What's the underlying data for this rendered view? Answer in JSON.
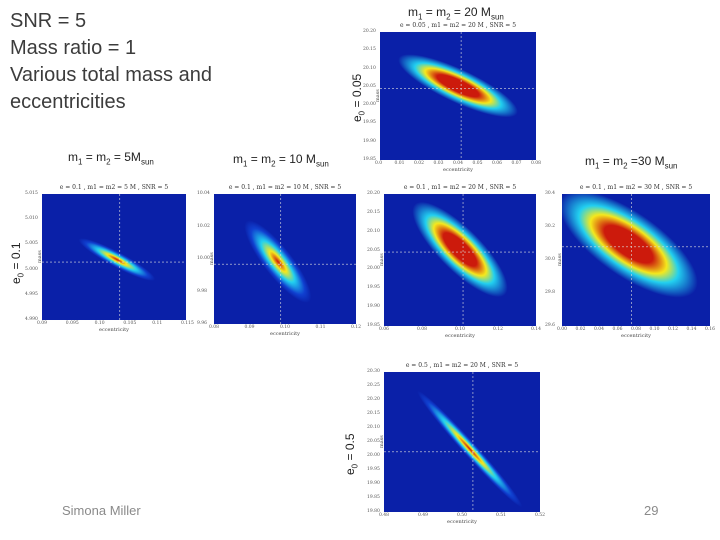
{
  "slide": {
    "title_lines": [
      "SNR = 5",
      "Mass ratio = 1",
      "Various total mass and",
      "eccentricities"
    ],
    "author": "Simona Miller",
    "page_number": "29"
  },
  "labels": {
    "mass_5": {
      "main": "m",
      "s1": "1",
      "mid": " = m",
      "s2": "2",
      "tail": " = 5M",
      "s3": "sun"
    },
    "mass_10": {
      "main": "m",
      "s1": "1",
      "mid": " = m",
      "s2": "2",
      "tail": " = 10 M",
      "s3": "sun"
    },
    "mass_20": {
      "main": "m",
      "s1": "1",
      "mid": " = m",
      "s2": "2",
      "tail": " = 20 M",
      "s3": "sun"
    },
    "mass_30": {
      "main": "m",
      "s1": "1",
      "mid": " = m",
      "s2": "2",
      "tail": " =30 M",
      "s3": "sun"
    },
    "ecc_005": {
      "main": "e",
      "s1": "0",
      "tail": " = 0.05"
    },
    "ecc_01": {
      "main": "e",
      "s1": "0",
      "tail": " = 0.1"
    },
    "ecc_05": {
      "main": "e",
      "s1": "0",
      "tail": " = 0.5"
    }
  },
  "plots": [
    {
      "id": "p20_005",
      "title": "e = 0.05 , m1 = m2 = 20 M , SNR = 5",
      "xlabel": "eccentricity",
      "ylabel": "mass",
      "xticks": [
        "0.0",
        "0.01",
        "0.02",
        "0.03",
        "0.04",
        "0.05",
        "0.06",
        "0.07",
        "0.08"
      ],
      "yticks": [
        "20.20",
        "20.15",
        "20.10",
        "20.05",
        "20.00",
        "19.95",
        "19.90",
        "19.85"
      ],
      "blob": {
        "cx": 0.5,
        "cy": 0.42,
        "rx": 0.42,
        "ry": 0.13,
        "rot": 25,
        "broad": true
      }
    },
    {
      "id": "p5_01",
      "title": "e = 0.1 , m1 = m2 = 5 M , SNR = 5",
      "xlabel": "eccentricity",
      "ylabel": "mass",
      "xticks": [
        "0.09",
        "0.095",
        "0.10",
        "0.105",
        "0.11",
        "0.115"
      ],
      "yticks": [
        "5.015",
        "5.010",
        "5.005",
        "5.000",
        "4.995",
        "4.990"
      ],
      "blob": {
        "cx": 0.52,
        "cy": 0.52,
        "rx": 0.3,
        "ry": 0.06,
        "rot": 28,
        "broad": false
      }
    },
    {
      "id": "p10_01",
      "title": "e = 0.1 , m1 = m2 = 10 M , SNR = 5",
      "xlabel": "eccentricity",
      "ylabel": "mass",
      "xticks": [
        "0.08",
        "0.09",
        "0.10",
        "0.11",
        "0.12"
      ],
      "yticks": [
        "10.04",
        "10.02",
        "10.00",
        "9.98",
        "9.96"
      ],
      "blob": {
        "cx": 0.45,
        "cy": 0.52,
        "rx": 0.36,
        "ry": 0.11,
        "rot": 52,
        "broad": false
      }
    },
    {
      "id": "p20_01",
      "title": "e = 0.1 , m1 = m2 = 20 M , SNR = 5",
      "xlabel": "eccentricity",
      "ylabel": "mass",
      "xticks": [
        "0.06",
        "0.08",
        "0.10",
        "0.12",
        "0.14"
      ],
      "yticks": [
        "20.20",
        "20.15",
        "20.10",
        "20.05",
        "20.00",
        "19.95",
        "19.90",
        "19.85"
      ],
      "blob": {
        "cx": 0.5,
        "cy": 0.42,
        "rx": 0.42,
        "ry": 0.16,
        "rot": 45,
        "broad": true
      }
    },
    {
      "id": "p30_01",
      "title": "e = 0.1 , m1 = m2 = 30 M , SNR = 5",
      "xlabel": "eccentricity",
      "ylabel": "mass",
      "xticks": [
        "0.00",
        "0.02",
        "0.04",
        "0.06",
        "0.08",
        "0.10",
        "0.12",
        "0.14",
        "0.16"
      ],
      "yticks": [
        "30.4",
        "30.2",
        "30.0",
        "29.8",
        "29.6"
      ],
      "blob": {
        "cx": 0.45,
        "cy": 0.38,
        "rx": 0.55,
        "ry": 0.24,
        "rot": 35,
        "broad": true
      }
    },
    {
      "id": "p20_05",
      "title": "e = 0.5 , m1 = m2 = 20 M , SNR = 5",
      "xlabel": "eccentricity",
      "ylabel": "mass",
      "xticks": [
        "0.48",
        "0.49",
        "0.50",
        "0.51",
        "0.52"
      ],
      "yticks": [
        "20.30",
        "20.25",
        "20.20",
        "20.15",
        "20.10",
        "20.05",
        "20.00",
        "19.95",
        "19.90",
        "19.85",
        "19.80"
      ],
      "blob": {
        "cx": 0.55,
        "cy": 0.55,
        "rx": 0.5,
        "ry": 0.05,
        "rot": 48,
        "broad": false
      }
    }
  ],
  "colors": {
    "bg_blue": "#0a20a8",
    "cyan": "#22d0f0",
    "yellow": "#f5e81c",
    "red": "#cc1a0c",
    "green": "#58e040"
  }
}
